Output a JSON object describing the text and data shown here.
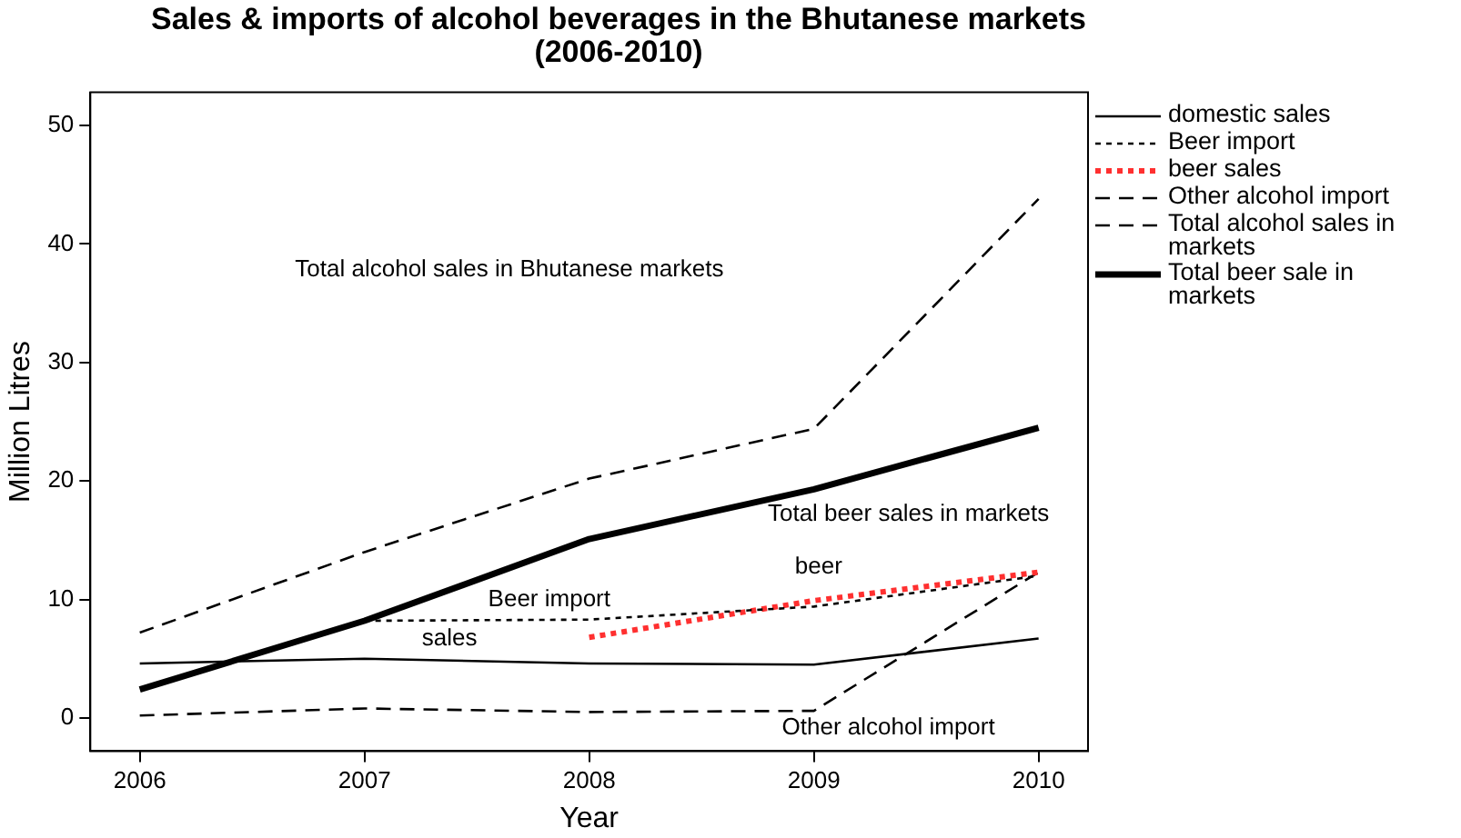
{
  "chart_data": {
    "type": "line",
    "title": "Sales & imports of alcohol beverages in the Bhutanese markets (2006-2010)",
    "xlabel": "Year",
    "ylabel": "Million Litres",
    "x": [
      2006,
      2007,
      2008,
      2009,
      2010
    ],
    "xlim": [
      2005.78,
      2010.22
    ],
    "xticks": [
      2006,
      2007,
      2008,
      2009,
      2010
    ],
    "ylim": [
      -2.8,
      52.8
    ],
    "yticks": [
      0,
      10,
      20,
      30,
      40,
      50
    ],
    "series": [
      {
        "name": "domestic sales",
        "color": "#000000",
        "line_style": "solid",
        "values": [
          4.6,
          5.0,
          4.6,
          4.5,
          6.7
        ]
      },
      {
        "name": "Beer import",
        "color": "#000000",
        "line_style": "dotted",
        "values": [
          null,
          8.2,
          8.3,
          9.4,
          12.0
        ]
      },
      {
        "name": "beer sales",
        "color": "#ff3030",
        "line_style": "dotted",
        "values": [
          null,
          null,
          6.8,
          9.9,
          12.3
        ]
      },
      {
        "name": "Other alcohol import",
        "color": "#000000",
        "line_style": "dashed",
        "values": [
          0.2,
          0.8,
          0.5,
          0.6,
          12.3
        ]
      },
      {
        "name": "Total alcohol sales in markets",
        "color": "#000000",
        "line_style": "dashed",
        "values": [
          7.2,
          14.0,
          20.2,
          24.4,
          43.8
        ]
      },
      {
        "name": "Total beer sale in markets",
        "color": "#000000",
        "line_style": "solid",
        "values": [
          2.4,
          8.2,
          15.1,
          19.3,
          24.5
        ]
      }
    ],
    "annotations": [
      "Total alcohol sales in Bhutanese markets",
      "Total beer sales in markets",
      "beer",
      "Beer import",
      "sales",
      "Other alcohol import"
    ],
    "legend": "right",
    "grid": false,
    "marker": "none"
  }
}
